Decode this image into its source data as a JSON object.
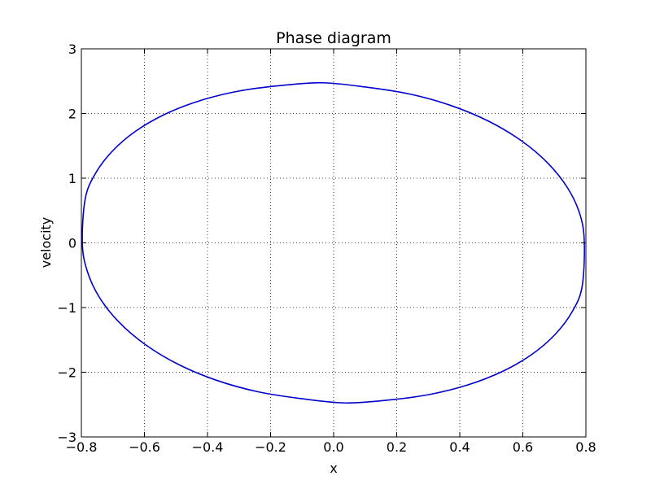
{
  "chart_data": {
    "type": "line",
    "title": "Phase diagram",
    "xlabel": "x",
    "ylabel": "velocity",
    "xlim": [
      -0.8,
      0.8
    ],
    "ylim": [
      -3,
      3
    ],
    "xticks": [
      -0.8,
      -0.6,
      -0.4,
      -0.2,
      0.0,
      0.2,
      0.4,
      0.6,
      0.8
    ],
    "yticks": [
      -3,
      -2,
      -1,
      0,
      1,
      2,
      3
    ],
    "xtick_labels": [
      "−0.8",
      "−0.6",
      "−0.4",
      "−0.2",
      "0.0",
      "0.2",
      "0.4",
      "0.6",
      "0.8"
    ],
    "ytick_labels": [
      "−3",
      "−2",
      "−1",
      "0",
      "1",
      "2",
      "3"
    ],
    "grid": true,
    "series": [
      {
        "color": "#0000cc",
        "x": [
          0.795,
          0.782,
          0.743,
          0.68,
          0.595,
          0.491,
          0.371,
          0.24,
          0.103,
          -0.036,
          -0.173,
          -0.305,
          -0.427,
          -0.536,
          -0.629,
          -0.703,
          -0.757,
          -0.788,
          -0.797,
          -0.782,
          -0.743,
          -0.68,
          -0.595,
          -0.491,
          -0.371,
          -0.24,
          -0.103,
          0.036,
          0.173,
          0.305,
          0.427,
          0.536,
          0.629,
          0.703,
          0.757,
          0.788,
          0.795
        ],
        "y": [
          0.0,
          0.427,
          0.841,
          1.229,
          1.58,
          1.882,
          2.125,
          2.302,
          2.408,
          2.475,
          2.43,
          2.343,
          2.194,
          1.986,
          1.723,
          1.412,
          1.06,
          0.677,
          0.0,
          -0.427,
          -0.841,
          -1.229,
          -1.58,
          -1.882,
          -2.125,
          -2.302,
          -2.408,
          -2.475,
          -2.43,
          -2.343,
          -2.194,
          -1.986,
          -1.723,
          -1.412,
          -1.06,
          -0.677,
          0.0
        ]
      }
    ]
  }
}
